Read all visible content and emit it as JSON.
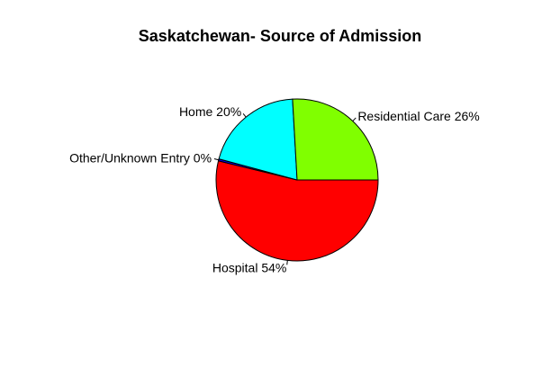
{
  "chart_data": {
    "type": "pie",
    "title": "Saskatchewan- Source of Admission",
    "slices": [
      {
        "label": "Hospital 54%",
        "category": "Hospital",
        "value": 54,
        "color": "#ff0000"
      },
      {
        "label": "Other/Unknown Entry 0%",
        "category": "Other/Unknown Entry",
        "value": 0.4,
        "color": "#0000ff"
      },
      {
        "label": "Home 20%",
        "category": "Home",
        "value": 20,
        "color": "#00ffff"
      },
      {
        "label": "Residential Care 26%",
        "category": "Residential Care",
        "value": 26,
        "color": "#80ff00"
      }
    ],
    "start_angle_deg": 0,
    "direction": "clockwise",
    "border_color": "#000000"
  }
}
